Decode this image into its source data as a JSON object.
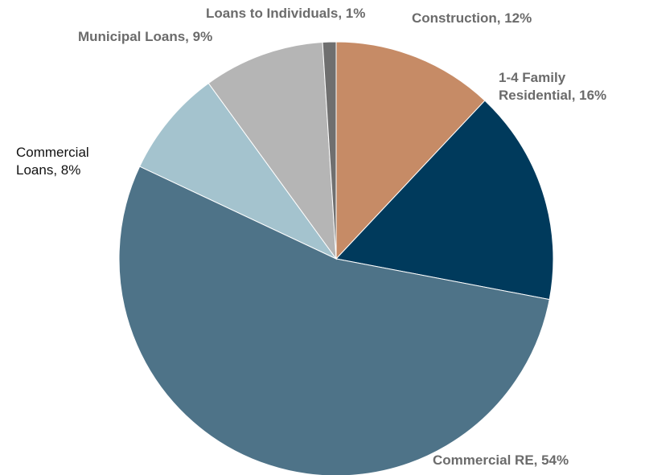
{
  "chart_data": {
    "type": "pie",
    "title": "",
    "start_angle_deg": 0,
    "direction": "clockwise",
    "legend": "none",
    "slices": [
      {
        "name": "Construction",
        "value": 12,
        "label": "Construction, 12%",
        "color": "#c68b66"
      },
      {
        "name": "1-4 Family Residential",
        "value": 16,
        "label_lines": [
          "1-4 Family",
          "Residential, 16%"
        ],
        "color": "#003a5c"
      },
      {
        "name": "Commercial RE",
        "value": 54,
        "label": "Commercial RE, 54%",
        "color": "#4e7388"
      },
      {
        "name": "Commercial Loans",
        "value": 8,
        "label_lines": [
          "Commercial",
          "Loans, 8%"
        ],
        "color": "#a4c3ce"
      },
      {
        "name": "Municipal Loans",
        "value": 9,
        "label": "Municipal Loans, 9%",
        "color": "#b5b5b5"
      },
      {
        "name": "Loans to Individuals",
        "value": 1,
        "label": "Loans to Individuals, 1%",
        "color": "#6f6f6f"
      }
    ]
  }
}
